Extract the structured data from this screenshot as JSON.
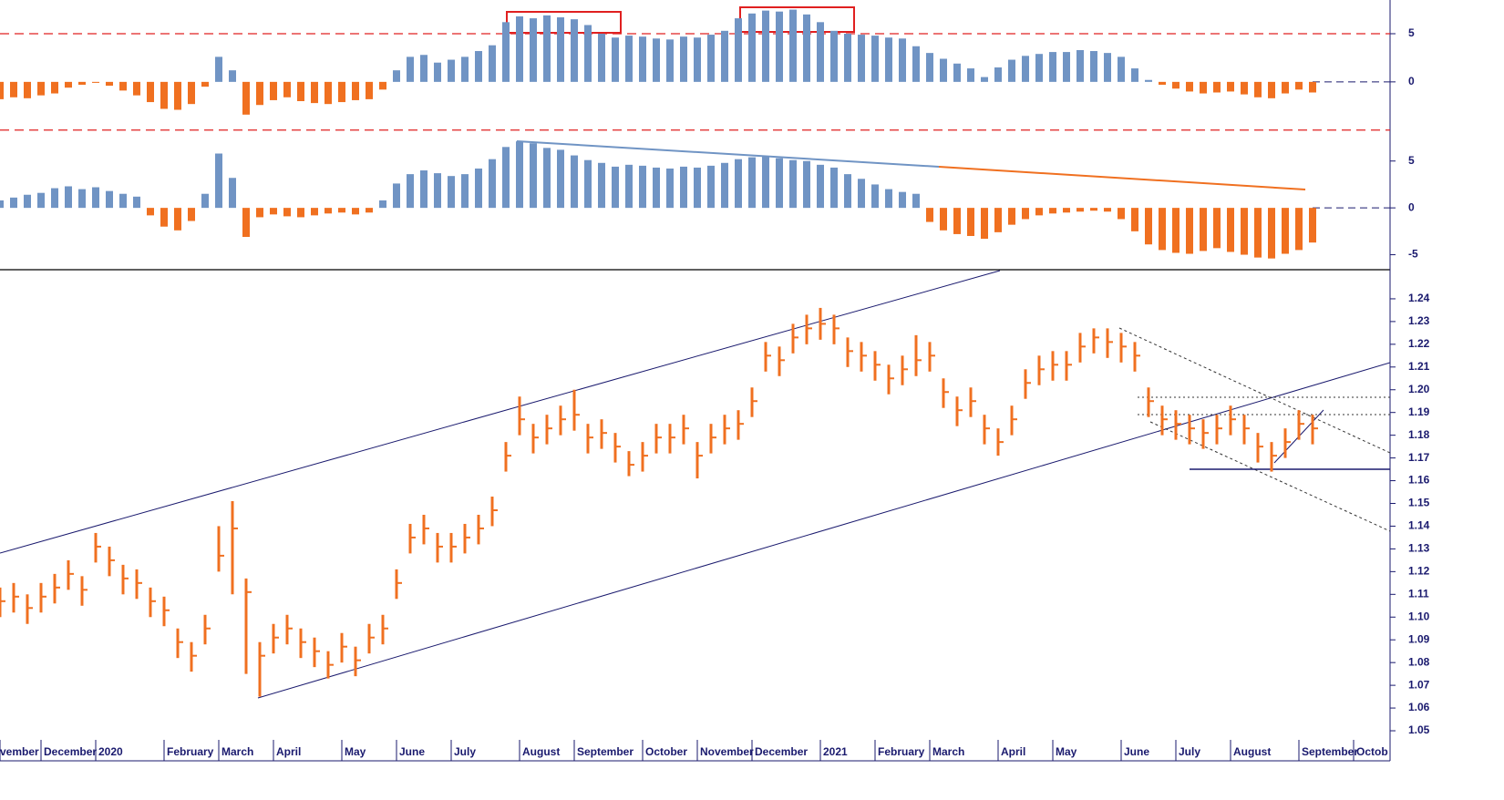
{
  "chart_data": [
    {
      "type": "bar",
      "pos_color": "#7094c4",
      "neg_color": "#f07020",
      "ylim": [
        -5.5,
        8.5
      ],
      "yticks": [
        5,
        0
      ],
      "reference_lines": [
        5,
        -5
      ],
      "reference_color": "#e02020",
      "values": [
        -1.8,
        -1.6,
        -1.7,
        -1.4,
        -1.2,
        -0.6,
        -0.3,
        -0.1,
        -0.4,
        -0.9,
        -1.4,
        -2.1,
        -2.8,
        -2.9,
        -2.3,
        -0.5,
        2.6,
        1.2,
        -3.4,
        -2.4,
        -1.9,
        -1.6,
        -2.0,
        -2.2,
        -2.3,
        -2.1,
        -1.9,
        -1.8,
        -0.8,
        1.2,
        2.6,
        2.8,
        2.0,
        2.3,
        2.6,
        3.2,
        3.8,
        6.2,
        6.8,
        6.6,
        6.9,
        6.7,
        6.5,
        5.9,
        5.0,
        4.6,
        4.8,
        4.7,
        4.5,
        4.4,
        4.7,
        4.6,
        4.9,
        5.3,
        6.6,
        7.1,
        7.4,
        7.3,
        7.5,
        7.0,
        6.2,
        5.3,
        5.0,
        4.9,
        4.8,
        4.6,
        4.5,
        3.7,
        3.0,
        2.4,
        1.9,
        1.4,
        0.5,
        1.5,
        2.3,
        2.7,
        2.9,
        3.1,
        3.1,
        3.3,
        3.2,
        3.0,
        2.6,
        1.4,
        0.2,
        -0.3,
        -0.7,
        -1.0,
        -1.2,
        -1.1,
        -1.0,
        -1.3,
        -1.6,
        -1.7,
        -1.2,
        -0.8,
        -1.1,
        null,
        null,
        null
      ]
    },
    {
      "type": "bar",
      "pos_color": "#7094c4",
      "neg_color": "#f07020",
      "ylim": [
        -6.6,
        7.6
      ],
      "yticks": [
        5,
        0,
        -5
      ],
      "values": [
        0.8,
        1.1,
        1.4,
        1.6,
        2.1,
        2.3,
        2.0,
        2.2,
        1.8,
        1.5,
        1.2,
        -0.8,
        -2.0,
        -2.4,
        -1.4,
        1.5,
        5.8,
        3.2,
        -3.1,
        -1.0,
        -0.7,
        -0.9,
        -1.0,
        -0.8,
        -0.6,
        -0.5,
        -0.7,
        -0.5,
        0.8,
        2.6,
        3.6,
        4.0,
        3.7,
        3.4,
        3.6,
        4.2,
        5.2,
        6.5,
        7.1,
        6.9,
        6.4,
        6.2,
        5.6,
        5.1,
        4.8,
        4.4,
        4.6,
        4.5,
        4.3,
        4.2,
        4.4,
        4.3,
        4.5,
        4.8,
        5.2,
        5.4,
        5.5,
        5.3,
        5.1,
        5.0,
        4.6,
        4.3,
        3.6,
        3.1,
        2.5,
        2.0,
        1.7,
        1.5,
        -1.5,
        -2.4,
        -2.8,
        -3.0,
        -3.3,
        -2.6,
        -1.8,
        -1.2,
        -0.8,
        -0.6,
        -0.5,
        -0.4,
        -0.3,
        -0.4,
        -1.2,
        -2.5,
        -3.9,
        -4.5,
        -4.8,
        -4.9,
        -4.6,
        -4.3,
        -4.7,
        -5.0,
        -5.3,
        -5.4,
        -4.9,
        -4.5,
        -3.7,
        null,
        null,
        null
      ]
    },
    {
      "type": "ohlc",
      "color": "#f07020",
      "ylim": [
        1.046,
        1.2524
      ],
      "yticks": [
        1.05,
        1.06,
        1.07,
        1.08,
        1.09,
        {
          "value": 1.1,
          "label": "1.10"
        },
        1.11,
        1.12,
        1.13,
        1.14,
        1.15,
        1.16,
        1.17,
        1.18,
        1.19,
        {
          "value": 1.2,
          "label": "1.20"
        },
        1.21,
        1.22,
        1.23,
        1.24
      ],
      "categories": [
        "vember",
        null,
        null,
        "December",
        null,
        null,
        null,
        "2020",
        null,
        null,
        null,
        null,
        "February",
        null,
        null,
        null,
        "March",
        null,
        null,
        null,
        "April",
        null,
        null,
        null,
        null,
        "May",
        null,
        null,
        null,
        "June",
        null,
        null,
        null,
        "July",
        null,
        null,
        null,
        null,
        "August",
        null,
        null,
        null,
        "September",
        null,
        null,
        null,
        null,
        "October",
        null,
        null,
        null,
        "November",
        null,
        null,
        null,
        "December",
        null,
        null,
        null,
        null,
        "2021",
        null,
        null,
        null,
        "February",
        null,
        null,
        null,
        "March",
        null,
        null,
        null,
        null,
        "April",
        null,
        null,
        null,
        "May",
        null,
        null,
        null,
        null,
        "June",
        null,
        null,
        null,
        "July",
        null,
        null,
        null,
        "August",
        null,
        null,
        null,
        null,
        "September",
        null,
        null,
        null,
        "Octob"
      ],
      "high": [
        1.113,
        1.115,
        1.11,
        1.115,
        1.119,
        1.125,
        1.118,
        1.137,
        1.131,
        1.123,
        1.121,
        1.113,
        1.109,
        1.095,
        1.089,
        1.101,
        1.14,
        1.151,
        1.117,
        1.089,
        1.097,
        1.101,
        1.095,
        1.091,
        1.085,
        1.093,
        1.087,
        1.097,
        1.101,
        1.121,
        1.141,
        1.145,
        1.137,
        1.137,
        1.141,
        1.145,
        1.153,
        1.177,
        1.197,
        1.185,
        1.189,
        1.193,
        1.2,
        1.185,
        1.187,
        1.181,
        1.173,
        1.177,
        1.185,
        1.185,
        1.189,
        1.177,
        1.185,
        1.189,
        1.191,
        1.201,
        1.221,
        1.219,
        1.229,
        1.233,
        1.236,
        1.233,
        1.223,
        1.221,
        1.217,
        1.211,
        1.215,
        1.224,
        1.221,
        1.205,
        1.197,
        1.201,
        1.189,
        1.183,
        1.193,
        1.209,
        1.215,
        1.217,
        1.217,
        1.225,
        1.227,
        1.227,
        1.225,
        1.221,
        1.201,
        1.193,
        1.191,
        1.189,
        1.187,
        1.189,
        1.193,
        1.189,
        1.181,
        1.177,
        1.183,
        1.191,
        1.189,
        null,
        null,
        null
      ],
      "low": [
        1.1,
        1.102,
        1.097,
        1.102,
        1.106,
        1.112,
        1.105,
        1.124,
        1.118,
        1.11,
        1.108,
        1.1,
        1.096,
        1.082,
        1.076,
        1.088,
        1.12,
        1.11,
        1.075,
        1.065,
        1.084,
        1.088,
        1.082,
        1.078,
        1.073,
        1.08,
        1.074,
        1.084,
        1.088,
        1.108,
        1.128,
        1.132,
        1.124,
        1.124,
        1.128,
        1.132,
        1.14,
        1.164,
        1.18,
        1.172,
        1.176,
        1.18,
        1.182,
        1.172,
        1.174,
        1.168,
        1.162,
        1.164,
        1.172,
        1.172,
        1.176,
        1.161,
        1.172,
        1.176,
        1.178,
        1.188,
        1.208,
        1.206,
        1.216,
        1.22,
        1.222,
        1.22,
        1.21,
        1.208,
        1.204,
        1.198,
        1.202,
        1.206,
        1.208,
        1.192,
        1.184,
        1.188,
        1.176,
        1.171,
        1.18,
        1.196,
        1.202,
        1.204,
        1.204,
        1.212,
        1.216,
        1.214,
        1.212,
        1.208,
        1.188,
        1.18,
        1.178,
        1.176,
        1.174,
        1.176,
        1.18,
        1.176,
        1.168,
        1.164,
        1.17,
        1.178,
        1.176,
        null,
        null,
        null
      ],
      "values": [
        1.107,
        1.109,
        1.104,
        1.109,
        1.113,
        1.119,
        1.112,
        1.131,
        1.125,
        1.117,
        1.115,
        1.107,
        1.103,
        1.089,
        1.083,
        1.095,
        1.127,
        1.139,
        1.111,
        1.083,
        1.091,
        1.095,
        1.089,
        1.085,
        1.079,
        1.087,
        1.081,
        1.091,
        1.095,
        1.115,
        1.135,
        1.139,
        1.131,
        1.131,
        1.135,
        1.139,
        1.147,
        1.171,
        1.187,
        1.179,
        1.183,
        1.187,
        1.189,
        1.179,
        1.181,
        1.175,
        1.167,
        1.171,
        1.179,
        1.179,
        1.183,
        1.171,
        1.179,
        1.183,
        1.185,
        1.195,
        1.215,
        1.213,
        1.223,
        1.227,
        1.229,
        1.227,
        1.217,
        1.215,
        1.211,
        1.205,
        1.209,
        1.213,
        1.215,
        1.199,
        1.191,
        1.195,
        1.183,
        1.177,
        1.187,
        1.203,
        1.209,
        1.211,
        1.211,
        1.219,
        1.223,
        1.221,
        1.219,
        1.215,
        1.195,
        1.187,
        1.185,
        1.183,
        1.181,
        1.183,
        1.187,
        1.183,
        1.175,
        1.171,
        1.177,
        1.185,
        1.183,
        null,
        null,
        null
      ]
    }
  ]
}
